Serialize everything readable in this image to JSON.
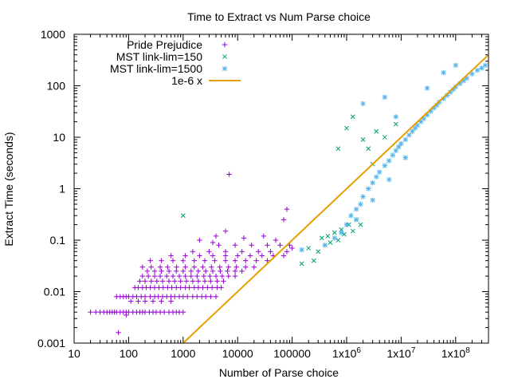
{
  "chart_data": {
    "type": "scatter",
    "title": "Time to Extract vs Num Parse choice",
    "xlabel": "Number of Parse choice",
    "ylabel": "Extract Time (seconds)",
    "xscale": "log",
    "yscale": "log",
    "xlim": [
      10,
      400000000
    ],
    "ylim": [
      0.001,
      1000
    ],
    "x_tick_labels": [
      "10",
      "100",
      "1000",
      "10000",
      "100000",
      "1x10^6",
      "1x10^7",
      "1x10^8"
    ],
    "x_ticks": [
      10,
      100,
      1000,
      10000,
      100000,
      1000000,
      10000000,
      100000000
    ],
    "y_tick_labels": [
      "0.001",
      "0.01",
      "0.1",
      "1",
      "10",
      "100",
      "1000"
    ],
    "y_ticks": [
      0.001,
      0.01,
      0.1,
      1,
      10,
      100,
      1000
    ],
    "grid": false,
    "legend_position": "top-left",
    "series": [
      {
        "name": "Pride Prejudice",
        "marker": "plus",
        "color": "#9400d3",
        "points": [
          [
            20,
            0.004
          ],
          [
            25,
            0.004
          ],
          [
            30,
            0.004
          ],
          [
            35,
            0.004
          ],
          [
            40,
            0.004
          ],
          [
            45,
            0.004
          ],
          [
            50,
            0.004
          ],
          [
            55,
            0.004
          ],
          [
            60,
            0.004
          ],
          [
            70,
            0.004
          ],
          [
            80,
            0.004
          ],
          [
            90,
            0.004
          ],
          [
            100,
            0.004
          ],
          [
            120,
            0.004
          ],
          [
            140,
            0.004
          ],
          [
            160,
            0.004
          ],
          [
            180,
            0.004
          ],
          [
            200,
            0.004
          ],
          [
            240,
            0.004
          ],
          [
            280,
            0.004
          ],
          [
            320,
            0.004
          ],
          [
            380,
            0.004
          ],
          [
            450,
            0.004
          ],
          [
            550,
            0.004
          ],
          [
            650,
            0.004
          ],
          [
            750,
            0.004
          ],
          [
            850,
            0.004
          ],
          [
            1000,
            0.004
          ],
          [
            65,
            0.0016
          ],
          [
            90,
            0.0035
          ],
          [
            60,
            0.008
          ],
          [
            70,
            0.008
          ],
          [
            80,
            0.008
          ],
          [
            90,
            0.008
          ],
          [
            100,
            0.008
          ],
          [
            120,
            0.008
          ],
          [
            140,
            0.008
          ],
          [
            170,
            0.008
          ],
          [
            200,
            0.008
          ],
          [
            250,
            0.008
          ],
          [
            300,
            0.008
          ],
          [
            350,
            0.008
          ],
          [
            420,
            0.008
          ],
          [
            500,
            0.008
          ],
          [
            600,
            0.008
          ],
          [
            700,
            0.008
          ],
          [
            850,
            0.008
          ],
          [
            1000,
            0.008
          ],
          [
            1200,
            0.008
          ],
          [
            1500,
            0.008
          ],
          [
            1800,
            0.008
          ],
          [
            2200,
            0.008
          ],
          [
            2600,
            0.008
          ],
          [
            3200,
            0.008
          ],
          [
            4000,
            0.008
          ],
          [
            130,
            0.012
          ],
          [
            150,
            0.012
          ],
          [
            180,
            0.012
          ],
          [
            210,
            0.012
          ],
          [
            250,
            0.012
          ],
          [
            300,
            0.012
          ],
          [
            360,
            0.012
          ],
          [
            430,
            0.012
          ],
          [
            520,
            0.012
          ],
          [
            620,
            0.012
          ],
          [
            750,
            0.012
          ],
          [
            900,
            0.012
          ],
          [
            1100,
            0.012
          ],
          [
            1300,
            0.012
          ],
          [
            1600,
            0.012
          ],
          [
            1900,
            0.012
          ],
          [
            2300,
            0.012
          ],
          [
            2800,
            0.012
          ],
          [
            3400,
            0.012
          ],
          [
            4200,
            0.012
          ],
          [
            5000,
            0.012
          ],
          [
            110,
            0.0065
          ],
          [
            150,
            0.0065
          ],
          [
            200,
            0.0065
          ],
          [
            280,
            0.0065
          ],
          [
            400,
            0.0065
          ],
          [
            600,
            0.0065
          ],
          [
            160,
            0.016
          ],
          [
            200,
            0.016
          ],
          [
            260,
            0.016
          ],
          [
            330,
            0.016
          ],
          [
            420,
            0.016
          ],
          [
            550,
            0.016
          ],
          [
            700,
            0.016
          ],
          [
            900,
            0.016
          ],
          [
            1150,
            0.016
          ],
          [
            1500,
            0.016
          ],
          [
            1900,
            0.016
          ],
          [
            2500,
            0.016
          ],
          [
            3200,
            0.016
          ],
          [
            4200,
            0.016
          ],
          [
            5500,
            0.016
          ],
          [
            180,
            0.02
          ],
          [
            230,
            0.02
          ],
          [
            300,
            0.02
          ],
          [
            380,
            0.02
          ],
          [
            500,
            0.02
          ],
          [
            650,
            0.02
          ],
          [
            850,
            0.02
          ],
          [
            1100,
            0.02
          ],
          [
            1400,
            0.02
          ],
          [
            1800,
            0.02
          ],
          [
            2400,
            0.02
          ],
          [
            3100,
            0.02
          ],
          [
            4000,
            0.02
          ],
          [
            5200,
            0.02
          ],
          [
            6800,
            0.02
          ],
          [
            9000,
            0.02
          ],
          [
            220,
            0.025
          ],
          [
            300,
            0.025
          ],
          [
            400,
            0.025
          ],
          [
            550,
            0.025
          ],
          [
            750,
            0.025
          ],
          [
            1000,
            0.025
          ],
          [
            1400,
            0.025
          ],
          [
            1900,
            0.025
          ],
          [
            2600,
            0.025
          ],
          [
            3500,
            0.025
          ],
          [
            4800,
            0.025
          ],
          [
            6500,
            0.025
          ],
          [
            9000,
            0.025
          ],
          [
            12000,
            0.025
          ],
          [
            180,
            0.03
          ],
          [
            260,
            0.03
          ],
          [
            380,
            0.03
          ],
          [
            520,
            0.03
          ],
          [
            760,
            0.03
          ],
          [
            1100,
            0.03
          ],
          [
            1600,
            0.03
          ],
          [
            2300,
            0.03
          ],
          [
            3300,
            0.03
          ],
          [
            4700,
            0.03
          ],
          [
            6800,
            0.03
          ],
          [
            9500,
            0.03
          ],
          [
            14000,
            0.03
          ],
          [
            20000,
            0.03
          ],
          [
            250,
            0.04
          ],
          [
            400,
            0.04
          ],
          [
            650,
            0.04
          ],
          [
            1000,
            0.04
          ],
          [
            1600,
            0.04
          ],
          [
            2500,
            0.04
          ],
          [
            3800,
            0.04
          ],
          [
            6000,
            0.04
          ],
          [
            9000,
            0.04
          ],
          [
            14000,
            0.04
          ],
          [
            22000,
            0.04
          ],
          [
            35000,
            0.04
          ],
          [
            600,
            0.05
          ],
          [
            1100,
            0.05
          ],
          [
            2000,
            0.05
          ],
          [
            3500,
            0.05
          ],
          [
            6000,
            0.05
          ],
          [
            10000,
            0.05
          ],
          [
            17000,
            0.05
          ],
          [
            28000,
            0.05
          ],
          [
            45000,
            0.05
          ],
          [
            70000,
            0.05
          ],
          [
            1500,
            0.06
          ],
          [
            3000,
            0.06
          ],
          [
            6000,
            0.06
          ],
          [
            12000,
            0.06
          ],
          [
            24000,
            0.06
          ],
          [
            40000,
            0.06
          ],
          [
            80000,
            0.06
          ],
          [
            4500,
            0.08
          ],
          [
            9000,
            0.08
          ],
          [
            18000,
            0.08
          ],
          [
            35000,
            0.08
          ],
          [
            60000,
            0.08
          ],
          [
            90000,
            0.08
          ],
          [
            7000,
            1.9
          ],
          [
            80000,
            0.4
          ],
          [
            70000,
            0.25
          ],
          [
            4000,
            0.12
          ],
          [
            2000,
            0.1
          ],
          [
            3500,
            0.09
          ],
          [
            6000,
            0.15
          ],
          [
            13000,
            0.11
          ],
          [
            30000,
            0.12
          ],
          [
            50000,
            0.1
          ],
          [
            100000,
            0.07
          ]
        ]
      },
      {
        "name": "MST link-lim=150",
        "marker": "x",
        "color": "#009e73",
        "points": [
          [
            1000,
            0.3
          ],
          [
            150000,
            0.035
          ],
          [
            250000,
            0.04
          ],
          [
            300000,
            0.06
          ],
          [
            400000,
            0.08
          ],
          [
            450000,
            0.12
          ],
          [
            500000,
            0.09
          ],
          [
            600000,
            0.14
          ],
          [
            700000,
            0.1
          ],
          [
            800000,
            0.16
          ],
          [
            900000,
            0.13
          ],
          [
            1100000,
            0.2
          ],
          [
            1300000,
            0.15
          ],
          [
            1500000,
            0.25
          ],
          [
            1800000,
            0.2
          ],
          [
            1000000,
            15
          ],
          [
            1300000,
            25
          ],
          [
            2000000,
            9
          ],
          [
            2500000,
            6
          ],
          [
            3000000,
            3
          ],
          [
            3500000,
            13
          ],
          [
            5000000,
            10
          ],
          [
            8000000,
            18
          ],
          [
            700000,
            6
          ],
          [
            200000,
            0.07
          ],
          [
            350000,
            0.11
          ]
        ]
      },
      {
        "name": "MST link-lim=1500",
        "marker": "star",
        "color": "#56b4e9",
        "points": [
          [
            150000,
            0.065
          ],
          [
            400000,
            0.08
          ],
          [
            600000,
            0.11
          ],
          [
            800000,
            0.14
          ],
          [
            1000000,
            0.2
          ],
          [
            1200000,
            0.3
          ],
          [
            1500000,
            0.4
          ],
          [
            1800000,
            0.5
          ],
          [
            2000000,
            0.7
          ],
          [
            2500000,
            1.0
          ],
          [
            3000000,
            1.3
          ],
          [
            3500000,
            1.7
          ],
          [
            4000000,
            2.1
          ],
          [
            5000000,
            2.8
          ],
          [
            6000000,
            3.5
          ],
          [
            7000000,
            4.5
          ],
          [
            8000000,
            5.5
          ],
          [
            9000000,
            6.5
          ],
          [
            10000000,
            7.5
          ],
          [
            12000000,
            9
          ],
          [
            14000000,
            11
          ],
          [
            16000000,
            13
          ],
          [
            18000000,
            15
          ],
          [
            20000000,
            17
          ],
          [
            23000000,
            20
          ],
          [
            26000000,
            23
          ],
          [
            30000000,
            27
          ],
          [
            35000000,
            32
          ],
          [
            40000000,
            37
          ],
          [
            45000000,
            42
          ],
          [
            50000000,
            48
          ],
          [
            60000000,
            56
          ],
          [
            70000000,
            65
          ],
          [
            80000000,
            75
          ],
          [
            90000000,
            85
          ],
          [
            100000000,
            95
          ],
          [
            120000000,
            110
          ],
          [
            140000000,
            125
          ],
          [
            160000000,
            140
          ],
          [
            200000000,
            170
          ],
          [
            250000000,
            200
          ],
          [
            300000000,
            220
          ],
          [
            350000000,
            250
          ],
          [
            2000000,
            45
          ],
          [
            5000000,
            60
          ],
          [
            8000000,
            25
          ],
          [
            30000000,
            90
          ],
          [
            60000000,
            180
          ],
          [
            100000000,
            250
          ],
          [
            1500000,
            0.25
          ],
          [
            3000000,
            0.6
          ],
          [
            6000000,
            1.5
          ],
          [
            12000000,
            4
          ]
        ]
      },
      {
        "name": "1e-6 x",
        "marker": "line",
        "color": "#e69f00",
        "points": [
          [
            1000,
            0.001
          ],
          [
            400000000,
            400
          ]
        ]
      }
    ]
  }
}
